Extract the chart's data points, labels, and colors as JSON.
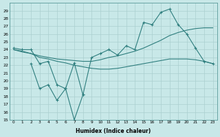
{
  "background_color": "#c8e8e8",
  "grid_color": "#aacfcf",
  "line_color": "#2d7d7d",
  "xlabel": "Humidex (Indice chaleur)",
  "ylim": [
    15,
    30
  ],
  "xlim": [
    -0.5,
    23.5
  ],
  "yticks": [
    15,
    16,
    17,
    18,
    19,
    20,
    21,
    22,
    23,
    24,
    25,
    26,
    27,
    28,
    29
  ],
  "xticks": [
    0,
    1,
    2,
    3,
    4,
    5,
    6,
    7,
    8,
    9,
    10,
    11,
    12,
    13,
    14,
    15,
    16,
    17,
    18,
    19,
    20,
    21,
    22,
    23
  ],
  "s1_x": [
    0,
    1,
    2,
    3,
    4,
    5,
    6,
    7,
    8,
    9,
    10,
    11,
    12,
    13,
    14,
    15,
    16,
    17,
    18,
    19,
    20,
    21,
    22,
    23
  ],
  "s1_y": [
    24.2,
    24.0,
    24.0,
    22.2,
    22.5,
    19.5,
    19.0,
    22.3,
    18.2,
    23.0,
    23.5,
    24.0,
    23.3,
    24.5,
    24.0,
    27.5,
    27.2,
    28.8,
    29.2,
    27.2,
    26.0,
    24.2,
    22.5,
    22.2
  ],
  "s2_x": [
    0,
    1,
    2,
    3,
    4,
    5,
    6,
    7,
    8,
    9,
    10,
    11,
    12,
    13,
    14,
    15,
    16,
    17,
    18,
    19,
    20,
    21,
    22,
    23
  ],
  "s2_y": [
    24.0,
    23.7,
    23.5,
    23.2,
    23.0,
    22.8,
    22.7,
    22.6,
    22.5,
    22.5,
    22.7,
    23.0,
    23.2,
    23.5,
    23.8,
    24.2,
    24.7,
    25.2,
    25.8,
    26.2,
    26.5,
    26.7,
    26.8,
    26.8
  ],
  "s3_x": [
    0,
    1,
    2,
    3,
    4,
    5,
    6,
    7,
    8,
    9,
    10,
    11,
    12,
    13,
    14,
    15,
    16,
    17,
    18,
    19,
    20,
    21,
    22,
    23
  ],
  "s3_y": [
    24.0,
    23.8,
    23.5,
    23.0,
    22.8,
    22.5,
    22.3,
    22.0,
    21.8,
    21.6,
    21.5,
    21.5,
    21.6,
    21.8,
    22.0,
    22.2,
    22.4,
    22.6,
    22.8,
    22.8,
    22.8,
    22.7,
    22.5,
    22.2
  ],
  "s4_x": [
    2,
    3,
    4,
    5,
    6,
    7,
    8
  ],
  "s4_y": [
    22.2,
    19.0,
    19.5,
    17.5,
    19.0,
    15.0,
    18.2
  ]
}
